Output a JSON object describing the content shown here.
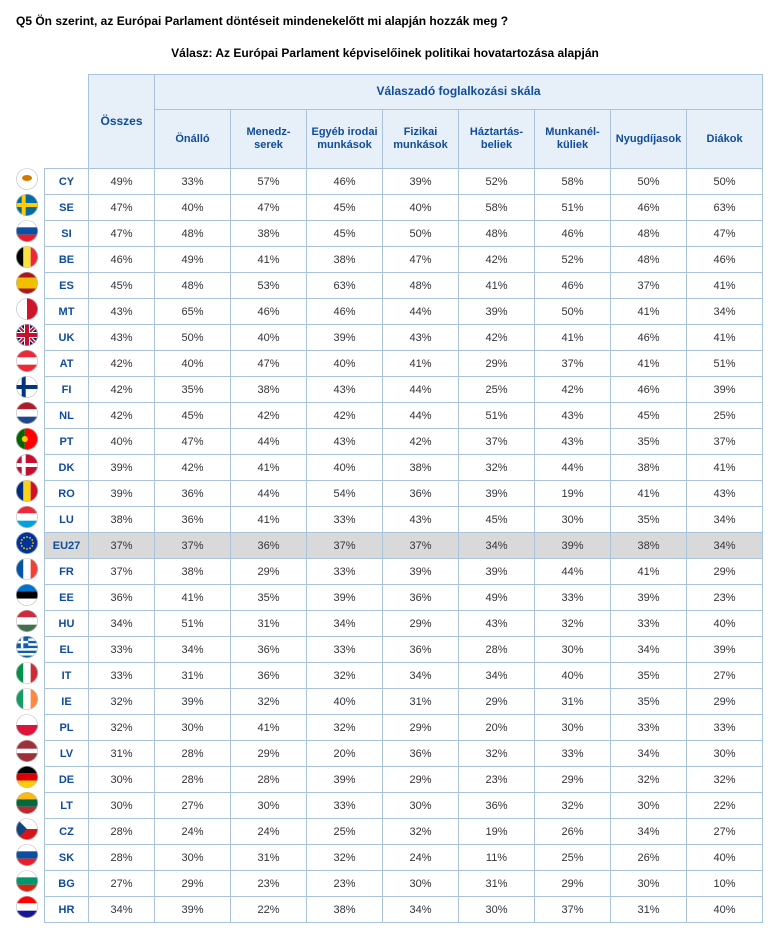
{
  "question": "Q5 Ön szerint, az Európai Parlament döntéseit mindenekelőtt mi alapján hozzák meg ?",
  "answer_title": "Válasz: Az Európai Parlament képviselőinek politikai hovatartozása alapján",
  "header": {
    "osszes": "Összes",
    "group": "Válaszadó foglalkozási skála",
    "cols": [
      "Önálló",
      "Menedzserek",
      "Egyéb irodai munkások",
      "Fizikai munkások",
      "Háztartásbeliek",
      "Munkanélküliek",
      "Nyugdíjasok",
      "Diákok"
    ],
    "cols_html": [
      "Önálló",
      "Menedz-\nserek",
      "Egyéb irodai\nmunkások",
      "Fizikai\nmunkások",
      "Háztartás-\nbeliek",
      "Munkanél-\nküliek",
      "Nyugdíjasok",
      "Diákok"
    ]
  },
  "rows": [
    {
      "code": "CY",
      "flag": "cy",
      "v": [
        "49%",
        "33%",
        "57%",
        "46%",
        "39%",
        "52%",
        "58%",
        "50%",
        "50%"
      ]
    },
    {
      "code": "SE",
      "flag": "se",
      "v": [
        "47%",
        "40%",
        "47%",
        "45%",
        "40%",
        "58%",
        "51%",
        "46%",
        "63%"
      ]
    },
    {
      "code": "SI",
      "flag": "si",
      "v": [
        "47%",
        "48%",
        "38%",
        "45%",
        "50%",
        "48%",
        "46%",
        "48%",
        "47%"
      ]
    },
    {
      "code": "BE",
      "flag": "be",
      "v": [
        "46%",
        "49%",
        "41%",
        "38%",
        "47%",
        "42%",
        "52%",
        "48%",
        "46%"
      ]
    },
    {
      "code": "ES",
      "flag": "es",
      "v": [
        "45%",
        "48%",
        "53%",
        "63%",
        "48%",
        "41%",
        "46%",
        "37%",
        "41%"
      ]
    },
    {
      "code": "MT",
      "flag": "mt",
      "v": [
        "43%",
        "65%",
        "46%",
        "46%",
        "44%",
        "39%",
        "50%",
        "41%",
        "34%"
      ]
    },
    {
      "code": "UK",
      "flag": "uk",
      "v": [
        "43%",
        "50%",
        "40%",
        "39%",
        "43%",
        "42%",
        "41%",
        "46%",
        "41%"
      ]
    },
    {
      "code": "AT",
      "flag": "at",
      "v": [
        "42%",
        "40%",
        "47%",
        "40%",
        "41%",
        "29%",
        "37%",
        "41%",
        "51%"
      ]
    },
    {
      "code": "FI",
      "flag": "fi",
      "v": [
        "42%",
        "35%",
        "38%",
        "43%",
        "44%",
        "25%",
        "42%",
        "46%",
        "39%"
      ]
    },
    {
      "code": "NL",
      "flag": "nl",
      "v": [
        "42%",
        "45%",
        "42%",
        "42%",
        "44%",
        "51%",
        "43%",
        "45%",
        "25%"
      ]
    },
    {
      "code": "PT",
      "flag": "pt",
      "v": [
        "40%",
        "47%",
        "44%",
        "43%",
        "42%",
        "37%",
        "43%",
        "35%",
        "37%"
      ]
    },
    {
      "code": "DK",
      "flag": "dk",
      "v": [
        "39%",
        "42%",
        "41%",
        "40%",
        "38%",
        "32%",
        "44%",
        "38%",
        "41%"
      ]
    },
    {
      "code": "RO",
      "flag": "ro",
      "v": [
        "39%",
        "36%",
        "44%",
        "54%",
        "36%",
        "39%",
        "19%",
        "41%",
        "43%"
      ]
    },
    {
      "code": "LU",
      "flag": "lu",
      "v": [
        "38%",
        "36%",
        "41%",
        "33%",
        "43%",
        "45%",
        "30%",
        "35%",
        "34%"
      ]
    },
    {
      "code": "EU27",
      "flag": "eu",
      "v": [
        "37%",
        "37%",
        "36%",
        "37%",
        "37%",
        "34%",
        "39%",
        "38%",
        "34%"
      ],
      "hl": true
    },
    {
      "code": "FR",
      "flag": "fr",
      "v": [
        "37%",
        "38%",
        "29%",
        "33%",
        "39%",
        "39%",
        "44%",
        "41%",
        "29%"
      ]
    },
    {
      "code": "EE",
      "flag": "ee",
      "v": [
        "36%",
        "41%",
        "35%",
        "39%",
        "36%",
        "49%",
        "33%",
        "39%",
        "23%"
      ]
    },
    {
      "code": "HU",
      "flag": "hu",
      "v": [
        "34%",
        "51%",
        "31%",
        "34%",
        "29%",
        "43%",
        "32%",
        "33%",
        "40%"
      ]
    },
    {
      "code": "EL",
      "flag": "el",
      "v": [
        "33%",
        "34%",
        "36%",
        "33%",
        "36%",
        "28%",
        "30%",
        "34%",
        "39%"
      ]
    },
    {
      "code": "IT",
      "flag": "it",
      "v": [
        "33%",
        "31%",
        "36%",
        "32%",
        "34%",
        "34%",
        "40%",
        "35%",
        "27%"
      ]
    },
    {
      "code": "IE",
      "flag": "ie",
      "v": [
        "32%",
        "39%",
        "32%",
        "40%",
        "31%",
        "29%",
        "31%",
        "35%",
        "29%"
      ]
    },
    {
      "code": "PL",
      "flag": "pl",
      "v": [
        "32%",
        "30%",
        "41%",
        "32%",
        "29%",
        "20%",
        "30%",
        "33%",
        "33%"
      ]
    },
    {
      "code": "LV",
      "flag": "lv",
      "v": [
        "31%",
        "28%",
        "29%",
        "20%",
        "36%",
        "32%",
        "33%",
        "34%",
        "30%"
      ]
    },
    {
      "code": "DE",
      "flag": "de",
      "v": [
        "30%",
        "28%",
        "28%",
        "39%",
        "29%",
        "23%",
        "29%",
        "32%",
        "32%"
      ]
    },
    {
      "code": "LT",
      "flag": "lt",
      "v": [
        "30%",
        "27%",
        "30%",
        "33%",
        "30%",
        "36%",
        "32%",
        "30%",
        "22%"
      ]
    },
    {
      "code": "CZ",
      "flag": "cz",
      "v": [
        "28%",
        "24%",
        "24%",
        "25%",
        "32%",
        "19%",
        "26%",
        "34%",
        "27%"
      ]
    },
    {
      "code": "SK",
      "flag": "sk",
      "v": [
        "28%",
        "30%",
        "31%",
        "32%",
        "24%",
        "11%",
        "25%",
        "26%",
        "40%"
      ]
    },
    {
      "code": "BG",
      "flag": "bg",
      "v": [
        "27%",
        "29%",
        "23%",
        "23%",
        "30%",
        "31%",
        "29%",
        "30%",
        "10%"
      ]
    },
    {
      "code": "HR",
      "flag": "hr",
      "v": [
        "34%",
        "39%",
        "22%",
        "38%",
        "34%",
        "30%",
        "37%",
        "31%",
        "40%"
      ]
    }
  ],
  "colors": {
    "border": "#a9c3dd",
    "header_bg": "#e7eff8",
    "header_text": "#0f4c9a",
    "highlight": "#d9d9d9"
  },
  "flag_defs": {
    "cy": {
      "type": "plain",
      "bg": "#ffffff",
      "emblem": "#d57800"
    },
    "se": {
      "type": "nordic",
      "bg": "#006aa7",
      "cross": "#fecc00"
    },
    "si": {
      "type": "hstripes",
      "c": [
        "#ffffff",
        "#0b4ea2",
        "#ed1c24"
      ]
    },
    "be": {
      "type": "vstripes",
      "c": [
        "#000000",
        "#fae042",
        "#ed2939"
      ]
    },
    "es": {
      "type": "hstripes3w",
      "c": [
        "#aa151b",
        "#f1bf00",
        "#aa151b"
      ],
      "w": [
        1,
        2,
        1
      ]
    },
    "mt": {
      "type": "vstripes",
      "c": [
        "#ffffff",
        "#cf142b"
      ]
    },
    "uk": {
      "type": "uk"
    },
    "at": {
      "type": "hstripes",
      "c": [
        "#ed2939",
        "#ffffff",
        "#ed2939"
      ]
    },
    "fi": {
      "type": "nordic",
      "bg": "#ffffff",
      "cross": "#003580"
    },
    "nl": {
      "type": "hstripes",
      "c": [
        "#ae1c28",
        "#ffffff",
        "#21468b"
      ]
    },
    "pt": {
      "type": "vstripes2w",
      "c": [
        "#006600",
        "#ff0000"
      ],
      "w": [
        2,
        3
      ],
      "emblem": "#ffcc00"
    },
    "dk": {
      "type": "nordic",
      "bg": "#c60c30",
      "cross": "#ffffff"
    },
    "ro": {
      "type": "vstripes",
      "c": [
        "#002b7f",
        "#fcd116",
        "#ce1126"
      ]
    },
    "lu": {
      "type": "hstripes",
      "c": [
        "#ed2939",
        "#ffffff",
        "#00a1de"
      ]
    },
    "eu": {
      "type": "eu"
    },
    "fr": {
      "type": "vstripes",
      "c": [
        "#0055a4",
        "#ffffff",
        "#ef4135"
      ]
    },
    "ee": {
      "type": "hstripes",
      "c": [
        "#0072ce",
        "#000000",
        "#ffffff"
      ]
    },
    "hu": {
      "type": "hstripes",
      "c": [
        "#cd2a3e",
        "#ffffff",
        "#436f4d"
      ]
    },
    "el": {
      "type": "el"
    },
    "it": {
      "type": "vstripes",
      "c": [
        "#009246",
        "#ffffff",
        "#ce2b37"
      ]
    },
    "ie": {
      "type": "vstripes",
      "c": [
        "#169b62",
        "#ffffff",
        "#ff883e"
      ]
    },
    "pl": {
      "type": "hstripes",
      "c": [
        "#ffffff",
        "#dc143c"
      ]
    },
    "lv": {
      "type": "hstripes3w",
      "c": [
        "#9e3039",
        "#ffffff",
        "#9e3039"
      ],
      "w": [
        2,
        1,
        2
      ]
    },
    "de": {
      "type": "hstripes",
      "c": [
        "#000000",
        "#dd0000",
        "#ffce00"
      ]
    },
    "lt": {
      "type": "hstripes",
      "c": [
        "#fdb913",
        "#006a44",
        "#c1272d"
      ]
    },
    "cz": {
      "type": "cz"
    },
    "sk": {
      "type": "hstripes",
      "c": [
        "#ffffff",
        "#0b4ea2",
        "#ee1c25"
      ]
    },
    "bg": {
      "type": "hstripes",
      "c": [
        "#ffffff",
        "#00966e",
        "#d62612"
      ]
    },
    "hr": {
      "type": "hstripes",
      "c": [
        "#ff0000",
        "#ffffff",
        "#171796"
      ]
    }
  }
}
